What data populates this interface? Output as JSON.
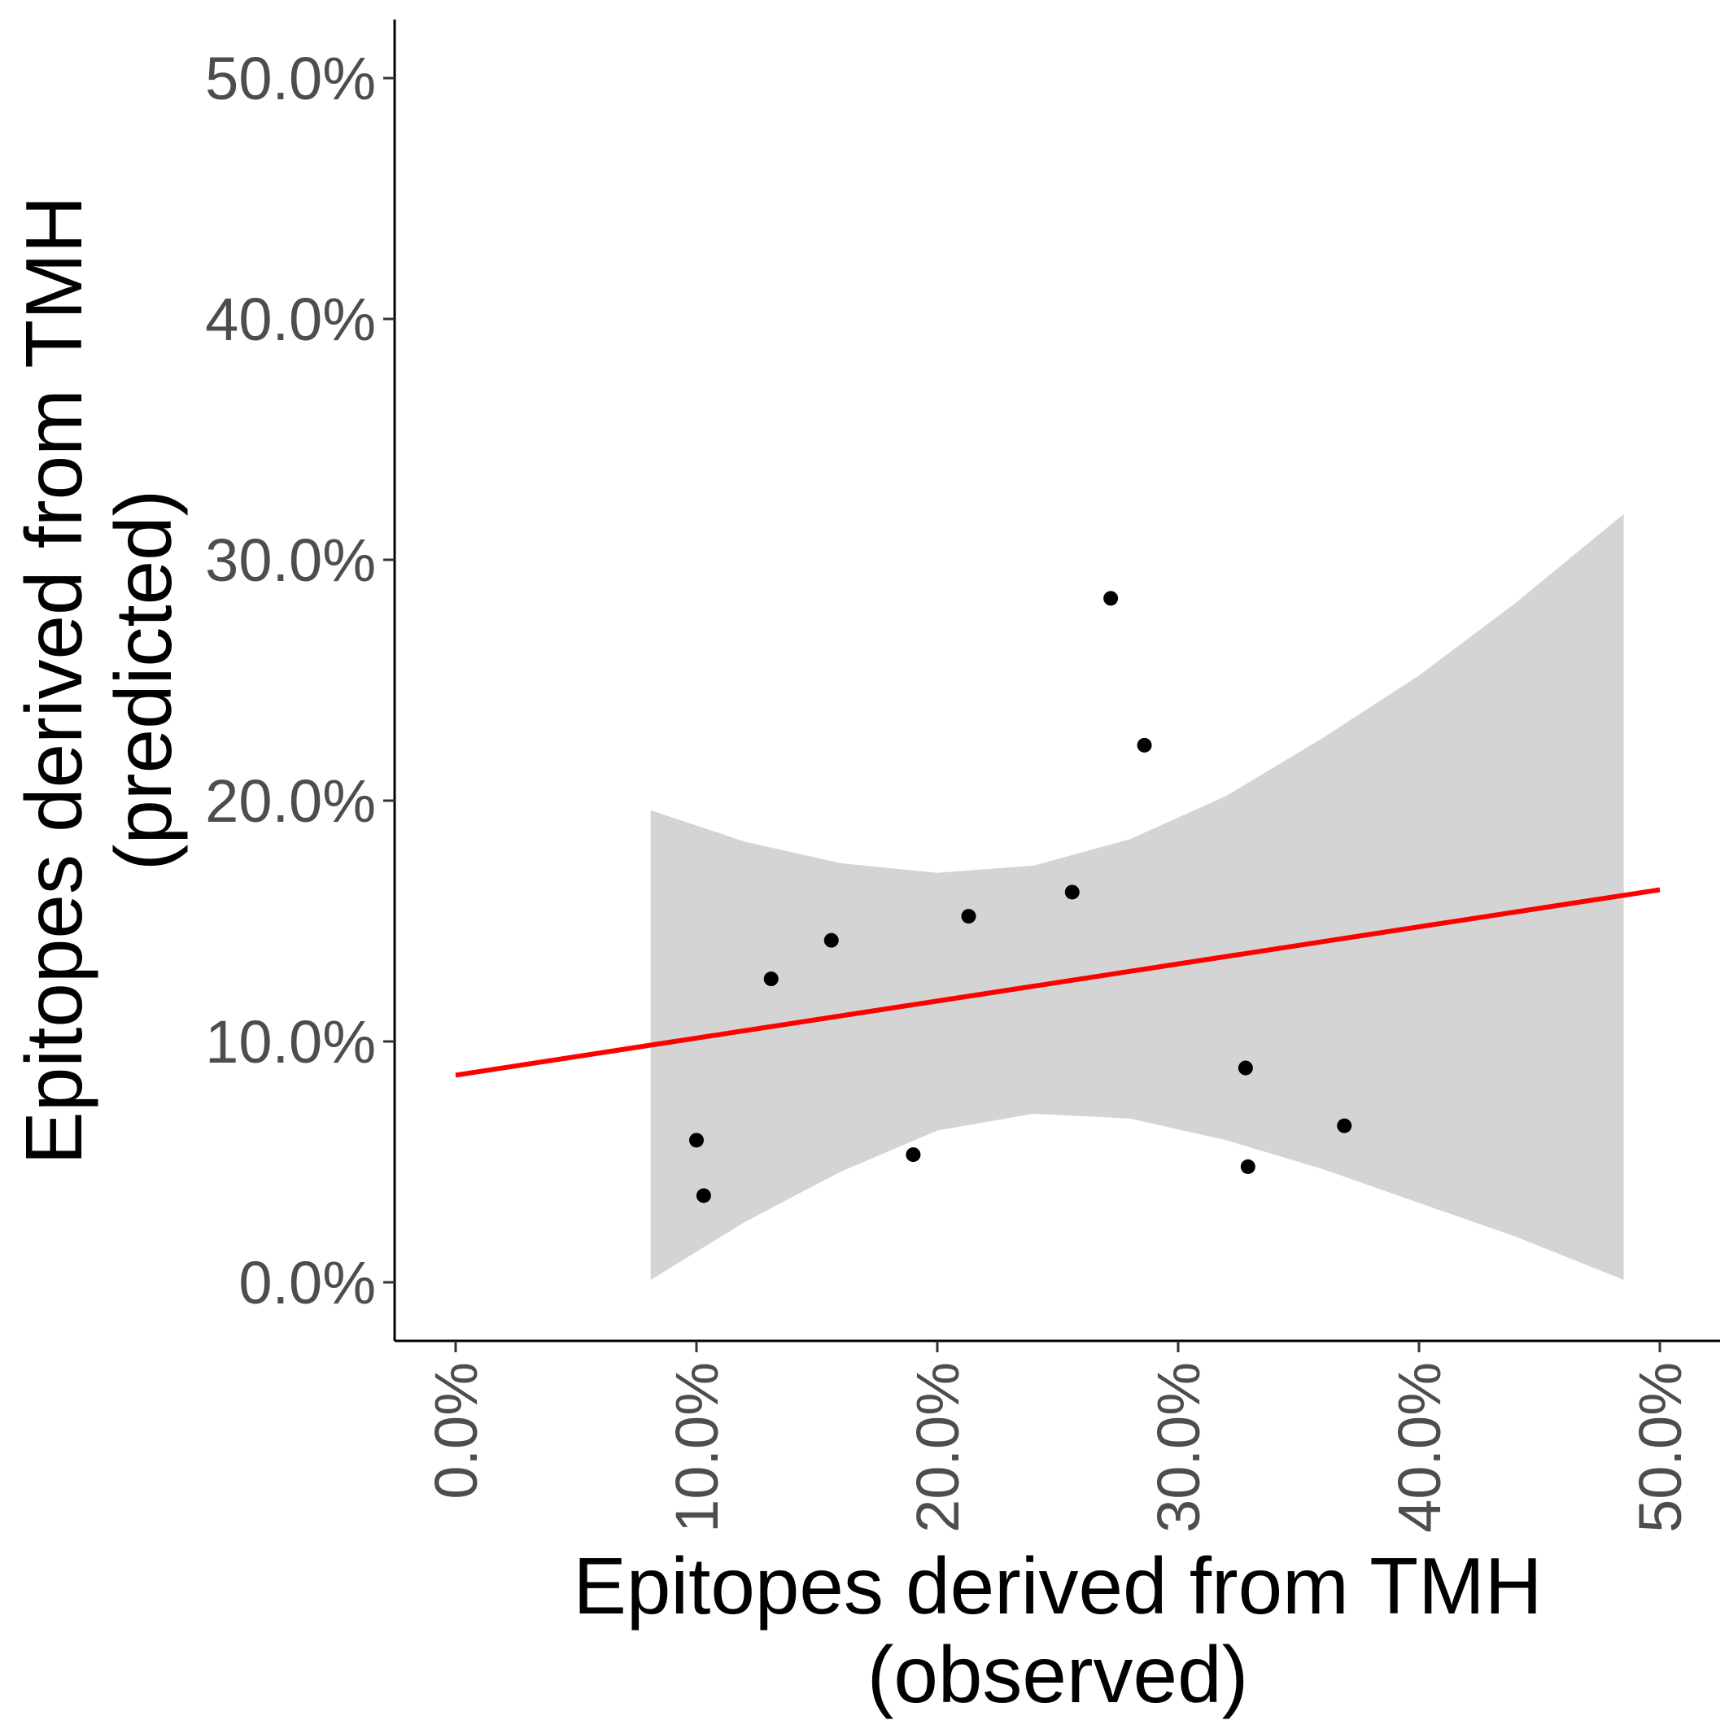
{
  "chart_data": {
    "type": "scatter",
    "title": "",
    "xlabel": [
      "Epitopes derived from TMH",
      "(observed)"
    ],
    "ylabel": [
      "Epitopes derived from TMH",
      "(predicted)"
    ],
    "xlim": [
      -2.5,
      52.5
    ],
    "ylim": [
      -2.5,
      52.5
    ],
    "xticks": [
      0,
      10,
      20,
      30,
      40,
      50
    ],
    "yticks": [
      0,
      10,
      20,
      30,
      40,
      50
    ],
    "xtick_labels": [
      "0.0%",
      "10.0%",
      "20.0%",
      "30.0%",
      "40.0%",
      "50.0%"
    ],
    "ytick_labels": [
      "0.0%",
      "10.0%",
      "20.0%",
      "30.0%",
      "40.0%",
      "50.0%"
    ],
    "grid": false,
    "points": [
      {
        "x": 10.0,
        "y": 5.9
      },
      {
        "x": 10.3,
        "y": 3.6
      },
      {
        "x": 13.1,
        "y": 12.6
      },
      {
        "x": 15.6,
        "y": 14.2
      },
      {
        "x": 19.0,
        "y": 5.3
      },
      {
        "x": 21.3,
        "y": 15.2
      },
      {
        "x": 25.6,
        "y": 16.2
      },
      {
        "x": 27.2,
        "y": 28.4
      },
      {
        "x": 28.6,
        "y": 22.3
      },
      {
        "x": 32.8,
        "y": 8.9
      },
      {
        "x": 32.9,
        "y": 4.8
      },
      {
        "x": 36.9,
        "y": 6.5
      }
    ],
    "fit_line": {
      "color": "#ff0000",
      "x": [
        0,
        50
      ],
      "y": [
        8.6,
        16.3
      ]
    },
    "confidence_band": {
      "color": "#d4d4d4",
      "x": [
        8.1,
        12,
        16,
        20,
        24,
        28,
        32,
        36,
        40,
        44,
        48.5
      ],
      "upper": [
        19.6,
        18.3,
        17.4,
        17.0,
        17.3,
        18.4,
        20.2,
        22.6,
        25.2,
        28.2,
        31.9
      ],
      "lower": [
        0.1,
        2.5,
        4.6,
        6.3,
        7.0,
        6.8,
        5.9,
        4.7,
        3.3,
        1.9,
        0.1
      ]
    },
    "point_color": "#000000"
  }
}
